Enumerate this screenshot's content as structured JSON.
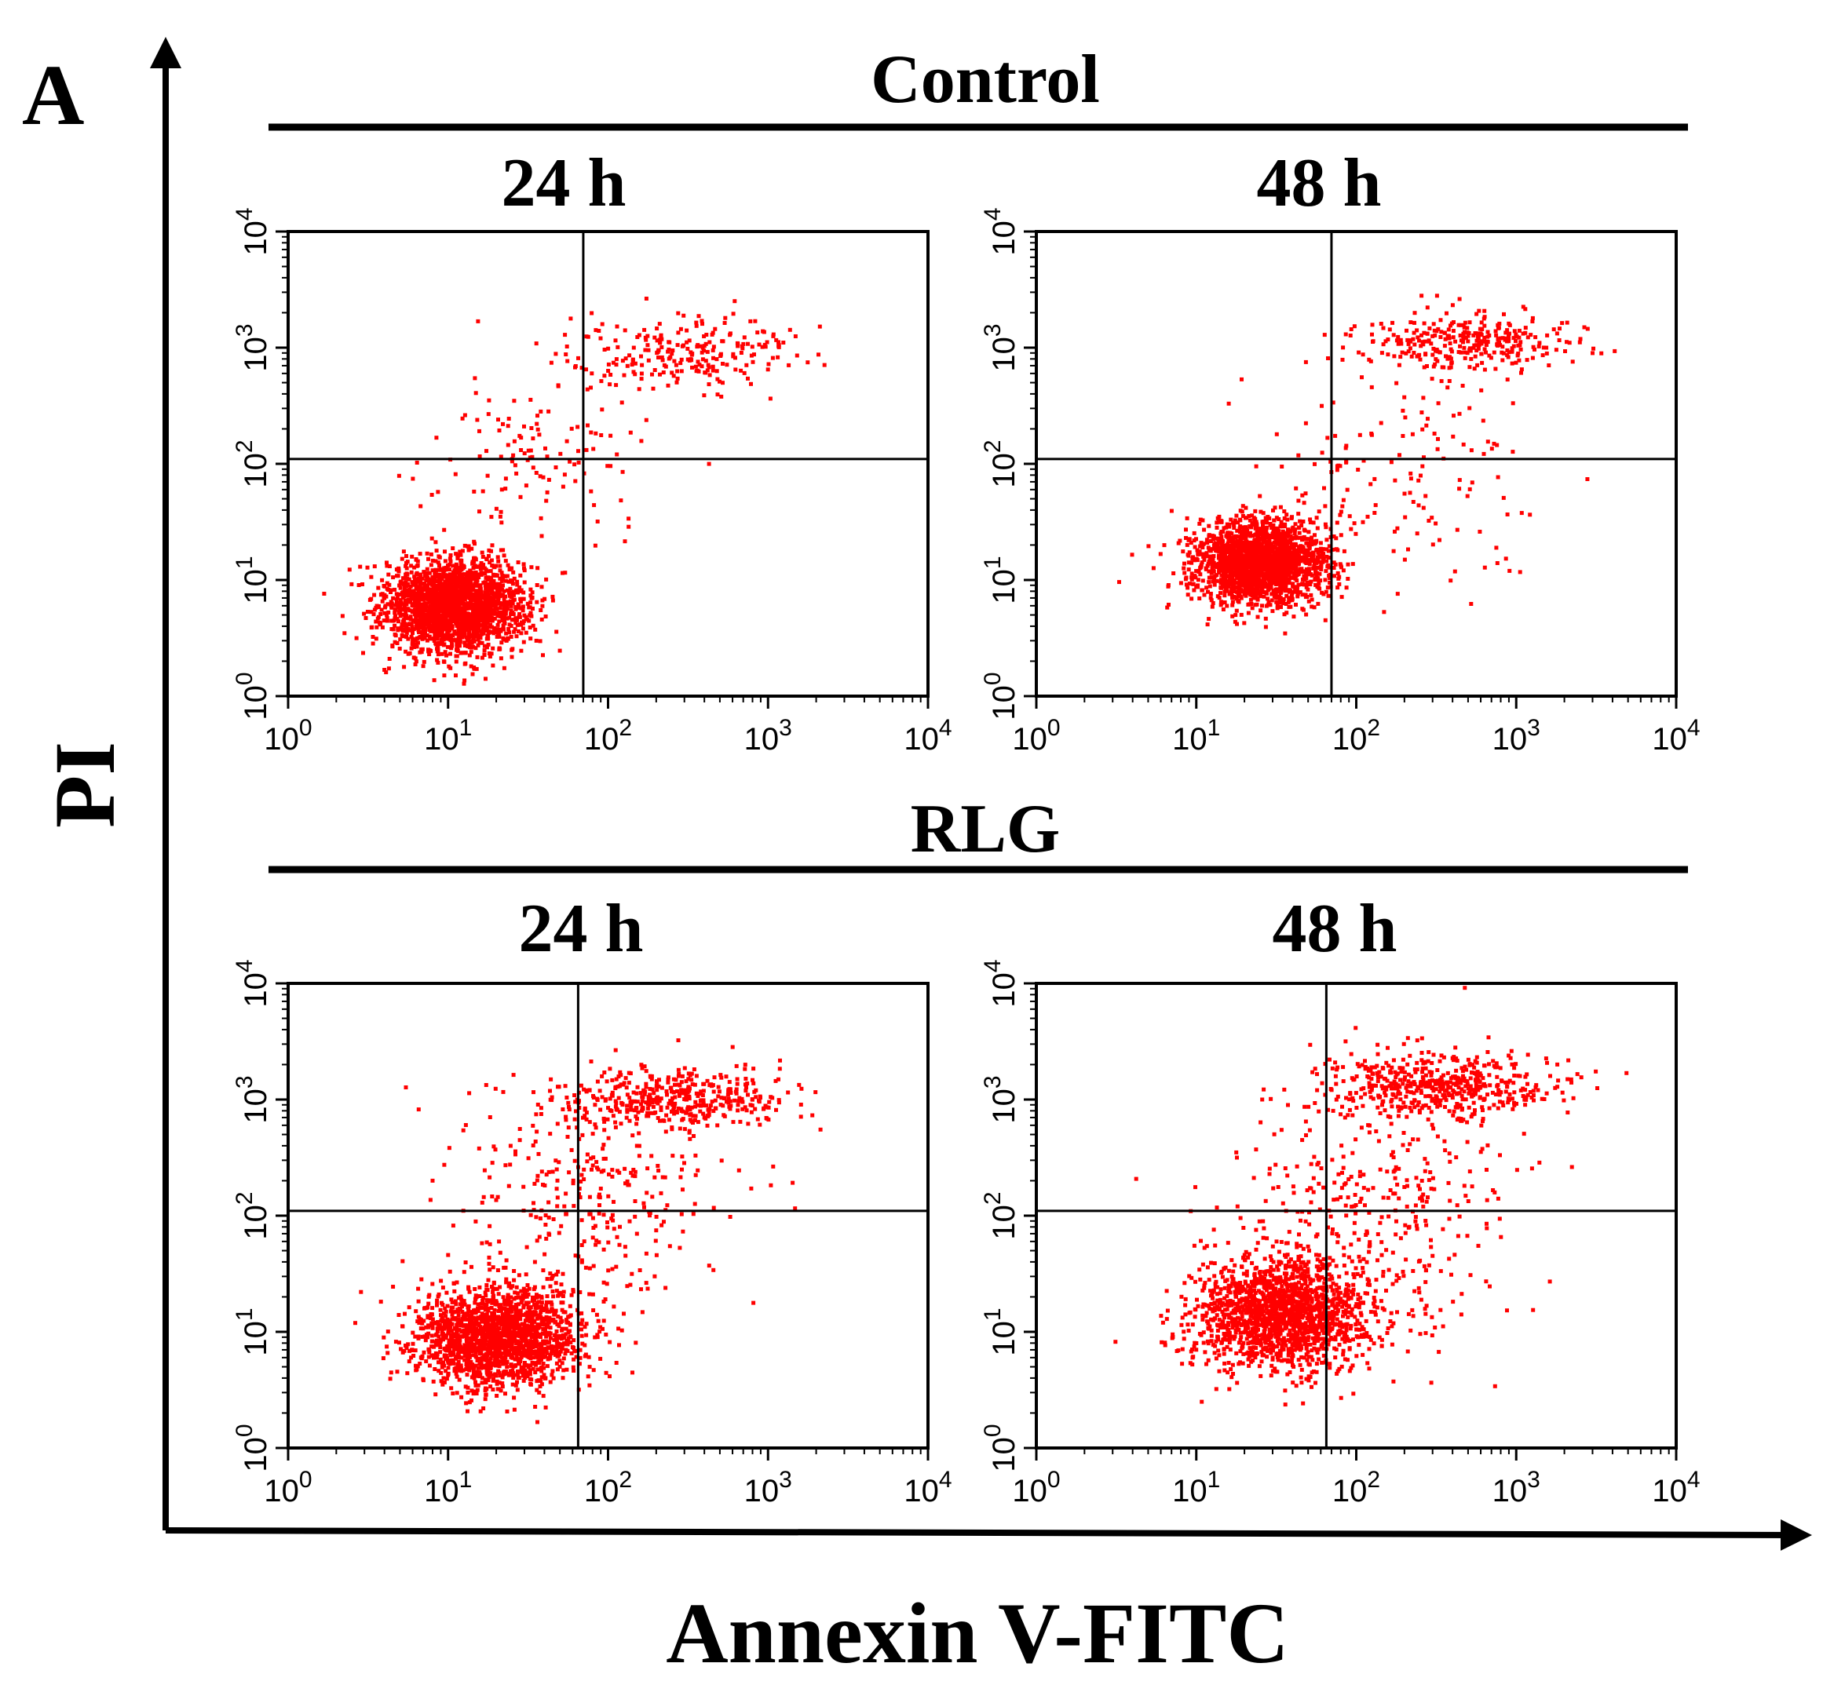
{
  "panel_letter": "A",
  "y_axis_label": "PI",
  "x_axis_label": "Annexin V-FITC",
  "groups": [
    {
      "name": "Control",
      "panels": [
        {
          "time": "24 h"
        },
        {
          "time": "48 h"
        }
      ]
    },
    {
      "name": "RLG",
      "panels": [
        {
          "time": "24 h"
        },
        {
          "time": "48 h"
        }
      ]
    }
  ],
  "tick_labels": {
    "base": "10",
    "exponents": [
      "0",
      "1",
      "2",
      "3",
      "4"
    ]
  },
  "colors": {
    "dots": "#ff0000",
    "axes": "#000000",
    "background": "#ffffff"
  },
  "chart_data": [
    {
      "type": "scatter",
      "group": "Control",
      "time": "24 h",
      "xscale": "log",
      "yscale": "log",
      "xlim": [
        1,
        10000
      ],
      "ylim": [
        1,
        10000
      ],
      "gate": {
        "x": 70,
        "y": 110
      },
      "populations": [
        {
          "center": [
            11,
            6
          ],
          "spread": [
            0.22,
            0.2
          ],
          "fraction": 0.86
        },
        {
          "center": [
            300,
            900
          ],
          "spread": [
            0.35,
            0.15
          ],
          "fraction": 0.09
        },
        {
          "center": [
            40,
            150
          ],
          "spread": [
            0.35,
            0.45
          ],
          "fraction": 0.05
        }
      ]
    },
    {
      "type": "scatter",
      "group": "Control",
      "time": "48 h",
      "xscale": "log",
      "yscale": "log",
      "xlim": [
        1,
        10000
      ],
      "ylim": [
        1,
        10000
      ],
      "gate": {
        "x": 70,
        "y": 110
      },
      "populations": [
        {
          "center": [
            25,
            14
          ],
          "spread": [
            0.2,
            0.18
          ],
          "fraction": 0.82
        },
        {
          "center": [
            500,
            1100
          ],
          "spread": [
            0.35,
            0.13
          ],
          "fraction": 0.12
        },
        {
          "center": [
            150,
            60
          ],
          "spread": [
            0.45,
            0.5
          ],
          "fraction": 0.06
        }
      ]
    },
    {
      "type": "scatter",
      "group": "RLG",
      "time": "24 h",
      "xscale": "log",
      "yscale": "log",
      "xlim": [
        1,
        10000
      ],
      "ylim": [
        1,
        10000
      ],
      "gate": {
        "x": 65,
        "y": 110
      },
      "populations": [
        {
          "center": [
            20,
            9
          ],
          "spread": [
            0.26,
            0.22
          ],
          "fraction": 0.72
        },
        {
          "center": [
            250,
            1000
          ],
          "spread": [
            0.35,
            0.13
          ],
          "fraction": 0.16
        },
        {
          "center": [
            80,
            150
          ],
          "spread": [
            0.45,
            0.5
          ],
          "fraction": 0.12
        }
      ]
    },
    {
      "type": "scatter",
      "group": "RLG",
      "time": "48 h",
      "xscale": "log",
      "yscale": "log",
      "xlim": [
        1,
        10000
      ],
      "ylim": [
        1,
        10000
      ],
      "gate": {
        "x": 65,
        "y": 110
      },
      "populations": [
        {
          "center": [
            35,
            14
          ],
          "spread": [
            0.28,
            0.24
          ],
          "fraction": 0.66
        },
        {
          "center": [
            300,
            1300
          ],
          "spread": [
            0.38,
            0.14
          ],
          "fraction": 0.2
        },
        {
          "center": [
            120,
            120
          ],
          "spread": [
            0.5,
            0.55
          ],
          "fraction": 0.14
        }
      ]
    }
  ]
}
